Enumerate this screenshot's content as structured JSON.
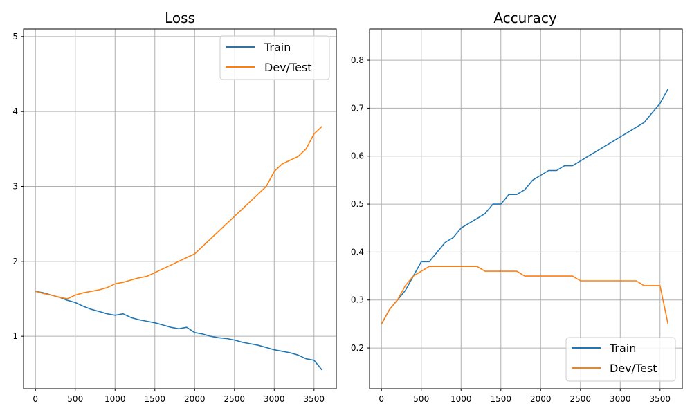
{
  "colors": {
    "train": "#1f77b4",
    "dev_test": "#ff7f0e",
    "grid": "#b0b0b0",
    "axes": "#000000"
  },
  "chart_data": [
    {
      "type": "line",
      "title": "Loss",
      "xlabel": "",
      "ylabel": "",
      "xlim": [
        -150,
        3780
      ],
      "ylim": [
        0.3,
        5.1
      ],
      "xticks": [
        0,
        500,
        1000,
        1500,
        2000,
        2500,
        3000,
        3500
      ],
      "yticks": [
        1,
        2,
        3,
        4,
        5
      ],
      "grid": true,
      "legend_position": "top-right",
      "x": [
        0,
        100,
        200,
        300,
        400,
        500,
        600,
        700,
        800,
        900,
        1000,
        1100,
        1200,
        1300,
        1400,
        1500,
        1600,
        1700,
        1800,
        1900,
        2000,
        2100,
        2200,
        2300,
        2400,
        2500,
        2600,
        2700,
        2800,
        2900,
        3000,
        3100,
        3200,
        3300,
        3400,
        3500,
        3600
      ],
      "series": [
        {
          "name": "Train",
          "color": "#1f77b4",
          "values": [
            1.6,
            1.58,
            1.55,
            1.52,
            1.48,
            1.45,
            1.4,
            1.36,
            1.33,
            1.3,
            1.28,
            1.3,
            1.25,
            1.22,
            1.2,
            1.18,
            1.15,
            1.12,
            1.1,
            1.12,
            1.05,
            1.03,
            1.0,
            0.98,
            0.97,
            0.95,
            0.92,
            0.9,
            0.88,
            0.85,
            0.82,
            0.8,
            0.78,
            0.75,
            0.7,
            0.68,
            0.55
          ]
        },
        {
          "name": "Dev/Test",
          "color": "#ff7f0e",
          "values": [
            1.6,
            1.57,
            1.55,
            1.52,
            1.5,
            1.55,
            1.58,
            1.6,
            1.62,
            1.65,
            1.7,
            1.72,
            1.75,
            1.78,
            1.8,
            1.85,
            1.9,
            1.95,
            2.0,
            2.05,
            2.1,
            2.2,
            2.3,
            2.4,
            2.5,
            2.6,
            2.7,
            2.8,
            2.9,
            3.0,
            3.2,
            3.3,
            3.35,
            3.4,
            3.5,
            3.7,
            3.8
          ]
        }
      ]
    },
    {
      "type": "line",
      "title": "Accuracy",
      "xlabel": "",
      "ylabel": "",
      "xlim": [
        -150,
        3780
      ],
      "ylim": [
        0.115,
        0.865
      ],
      "xticks": [
        0,
        500,
        1000,
        1500,
        2000,
        2500,
        3000,
        3500
      ],
      "yticks": [
        0.2,
        0.3,
        0.4,
        0.5,
        0.6,
        0.7,
        0.8
      ],
      "grid": true,
      "legend_position": "bottom-right",
      "x": [
        0,
        100,
        200,
        300,
        400,
        500,
        600,
        700,
        800,
        900,
        1000,
        1100,
        1200,
        1300,
        1400,
        1500,
        1600,
        1700,
        1800,
        1900,
        2000,
        2100,
        2200,
        2300,
        2400,
        2500,
        2600,
        2700,
        2800,
        2900,
        3000,
        3100,
        3200,
        3300,
        3400,
        3500,
        3600
      ],
      "series": [
        {
          "name": "Train",
          "color": "#1f77b4",
          "values": [
            0.25,
            0.28,
            0.3,
            0.32,
            0.35,
            0.38,
            0.38,
            0.4,
            0.42,
            0.43,
            0.45,
            0.46,
            0.47,
            0.48,
            0.5,
            0.5,
            0.52,
            0.52,
            0.53,
            0.55,
            0.56,
            0.57,
            0.57,
            0.58,
            0.58,
            0.59,
            0.6,
            0.61,
            0.62,
            0.63,
            0.64,
            0.65,
            0.66,
            0.67,
            0.69,
            0.71,
            0.74
          ]
        },
        {
          "name": "Dev/Test",
          "color": "#ff7f0e",
          "values": [
            0.25,
            0.28,
            0.3,
            0.33,
            0.35,
            0.36,
            0.37,
            0.37,
            0.37,
            0.37,
            0.37,
            0.37,
            0.37,
            0.36,
            0.36,
            0.36,
            0.36,
            0.36,
            0.35,
            0.35,
            0.35,
            0.35,
            0.35,
            0.35,
            0.35,
            0.34,
            0.34,
            0.34,
            0.34,
            0.34,
            0.34,
            0.34,
            0.34,
            0.33,
            0.33,
            0.33,
            0.25
          ]
        }
      ]
    }
  ]
}
